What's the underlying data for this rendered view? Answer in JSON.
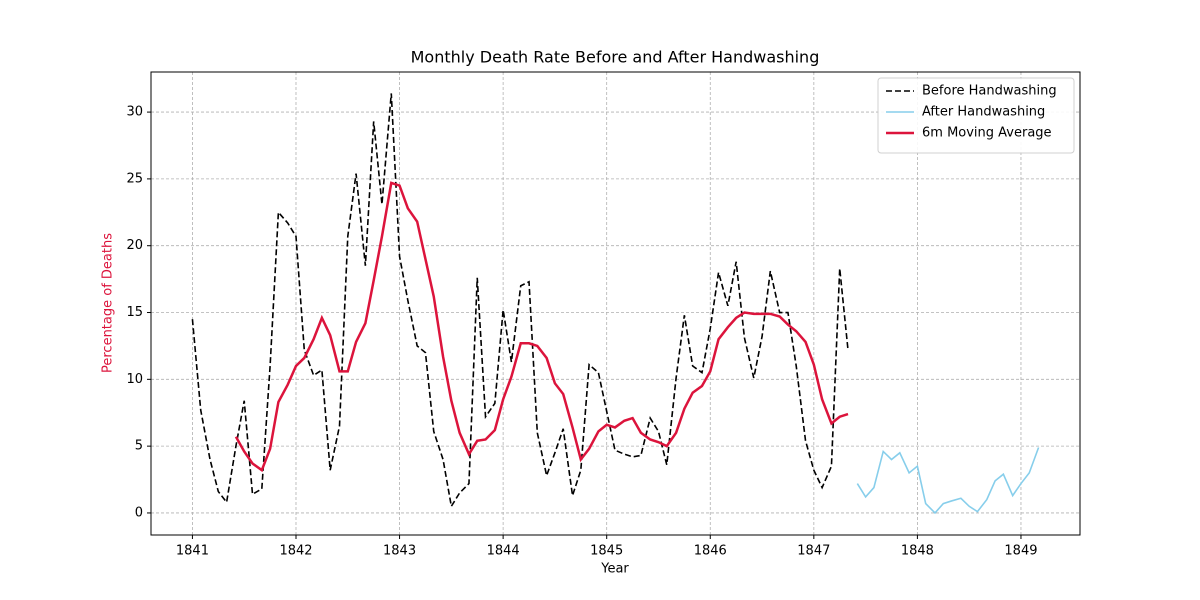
{
  "chart_data": {
    "type": "line",
    "title": "Monthly Death Rate Before and After Handwashing",
    "xlabel": "Year",
    "ylabel": "Percentage of Deaths",
    "ylabel_color": "#dc143c",
    "x": [
      1841.0,
      1841.08,
      1841.17,
      1841.25,
      1841.33,
      1841.42,
      1841.5,
      1841.58,
      1841.67,
      1841.75,
      1841.83,
      1841.92,
      1842.0,
      1842.08,
      1842.17,
      1842.25,
      1842.33,
      1842.42,
      1842.5,
      1842.58,
      1842.67,
      1842.75,
      1842.83,
      1842.92,
      1843.0,
      1843.08,
      1843.17,
      1843.25,
      1843.33,
      1843.42,
      1843.5,
      1843.58,
      1843.67,
      1843.75,
      1843.83,
      1843.92,
      1844.0,
      1844.08,
      1844.17,
      1844.25,
      1844.33,
      1844.42,
      1844.5,
      1844.58,
      1844.67,
      1844.75,
      1844.83,
      1844.92,
      1845.0,
      1845.08,
      1845.17,
      1845.25,
      1845.33,
      1845.42,
      1845.5,
      1845.58,
      1845.67,
      1845.75,
      1845.83,
      1845.92,
      1846.0,
      1846.08,
      1846.17,
      1846.25,
      1846.33,
      1846.42,
      1846.5,
      1846.58,
      1846.67,
      1846.75,
      1846.83,
      1846.92,
      1847.0,
      1847.08,
      1847.17,
      1847.25,
      1847.33,
      1847.42,
      1847.5,
      1847.58,
      1847.67,
      1847.75,
      1847.83,
      1847.92,
      1848.0,
      1848.08,
      1848.17,
      1848.25,
      1848.33,
      1848.42,
      1848.5,
      1848.58,
      1848.67,
      1848.75,
      1848.83,
      1848.92,
      1849.0,
      1849.08,
      1849.17
    ],
    "series": [
      {
        "name": "Before Handwashing",
        "color": "#000000",
        "linestyle": "dashed",
        "linewidth": 1.6,
        "values": [
          14.5,
          7.7,
          4.0,
          1.6,
          0.8,
          5.0,
          8.4,
          1.4,
          1.8,
          11.0,
          22.5,
          21.7,
          20.7,
          12.2,
          10.3,
          10.7,
          3.2,
          6.5,
          20.7,
          25.4,
          18.5,
          29.3,
          23.1,
          31.4,
          19.2,
          15.9,
          12.5,
          12.0,
          6.1,
          4.0,
          0.5,
          1.5,
          2.2,
          17.6,
          7.2,
          8.2,
          15.2,
          11.3,
          17.0,
          17.3,
          6.0,
          2.8,
          4.5,
          6.3,
          1.3,
          3.2,
          11.1,
          10.5,
          7.6,
          4.7,
          4.4,
          4.2,
          4.3,
          7.1,
          6.1,
          3.6,
          10.1,
          14.8,
          11.0,
          10.5,
          13.8,
          18.0,
          15.5,
          18.8,
          13.1,
          10.1,
          13.2,
          18.1,
          15.0,
          15.0,
          11.0,
          5.4,
          3.2,
          1.9,
          3.5,
          18.3,
          12.2,
          null,
          null,
          null,
          null,
          null,
          null,
          null,
          null,
          null,
          null,
          null,
          null,
          null,
          null,
          null,
          null,
          null,
          null,
          null,
          null,
          null,
          null
        ]
      },
      {
        "name": "After Handwashing",
        "color": "#87ceeb",
        "linestyle": "solid",
        "linewidth": 1.6,
        "values": [
          null,
          null,
          null,
          null,
          null,
          null,
          null,
          null,
          null,
          null,
          null,
          null,
          null,
          null,
          null,
          null,
          null,
          null,
          null,
          null,
          null,
          null,
          null,
          null,
          null,
          null,
          null,
          null,
          null,
          null,
          null,
          null,
          null,
          null,
          null,
          null,
          null,
          null,
          null,
          null,
          null,
          null,
          null,
          null,
          null,
          null,
          null,
          null,
          null,
          null,
          null,
          null,
          null,
          null,
          null,
          null,
          null,
          null,
          null,
          null,
          null,
          null,
          null,
          null,
          null,
          null,
          null,
          null,
          null,
          null,
          null,
          null,
          null,
          null,
          null,
          null,
          null,
          2.2,
          1.2,
          1.9,
          4.6,
          4.0,
          4.5,
          3.0,
          3.5,
          0.7,
          0.0,
          0.7,
          0.9,
          1.1,
          0.5,
          0.1,
          1.0,
          2.4,
          2.9,
          1.3,
          2.2,
          3.0,
          4.9
        ]
      },
      {
        "name": "6m Moving Average",
        "color": "#dc143c",
        "linestyle": "solid",
        "linewidth": 2.5,
        "values": [
          null,
          null,
          null,
          null,
          null,
          5.7,
          4.6,
          3.7,
          3.2,
          4.8,
          8.3,
          9.6,
          11.0,
          11.6,
          13.0,
          14.6,
          13.3,
          10.6,
          10.6,
          12.8,
          14.2,
          17.4,
          20.7,
          24.7,
          24.5,
          22.8,
          21.8,
          19.0,
          16.2,
          11.7,
          8.4,
          6.0,
          4.4,
          5.4,
          5.5,
          6.2,
          8.5,
          10.2,
          12.7,
          12.7,
          12.5,
          11.6,
          9.7,
          8.9,
          6.4,
          4.0,
          4.8,
          6.1,
          6.6,
          6.4,
          6.9,
          7.1,
          6.0,
          5.5,
          5.3,
          5.0,
          6.0,
          7.8,
          9.0,
          9.5,
          10.6,
          13.0,
          13.9,
          14.6,
          15.0,
          14.9,
          14.9,
          14.9,
          14.7,
          14.1,
          13.6,
          12.8,
          11.1,
          8.5,
          6.7,
          7.2,
          7.4,
          null,
          null,
          null,
          null,
          null,
          null,
          null,
          null,
          null,
          null,
          null,
          null,
          null,
          null,
          null,
          null,
          null,
          null,
          null,
          null,
          null,
          null
        ]
      }
    ],
    "xlim": [
      1840.6,
      1849.57
    ],
    "xticks": [
      1841,
      1842,
      1843,
      1844,
      1845,
      1846,
      1847,
      1848,
      1849
    ],
    "ylim": [
      -1.65,
      33.0
    ],
    "yticks": [
      0,
      5,
      10,
      15,
      20,
      25,
      30
    ],
    "grid": true,
    "legend": "upper right"
  }
}
